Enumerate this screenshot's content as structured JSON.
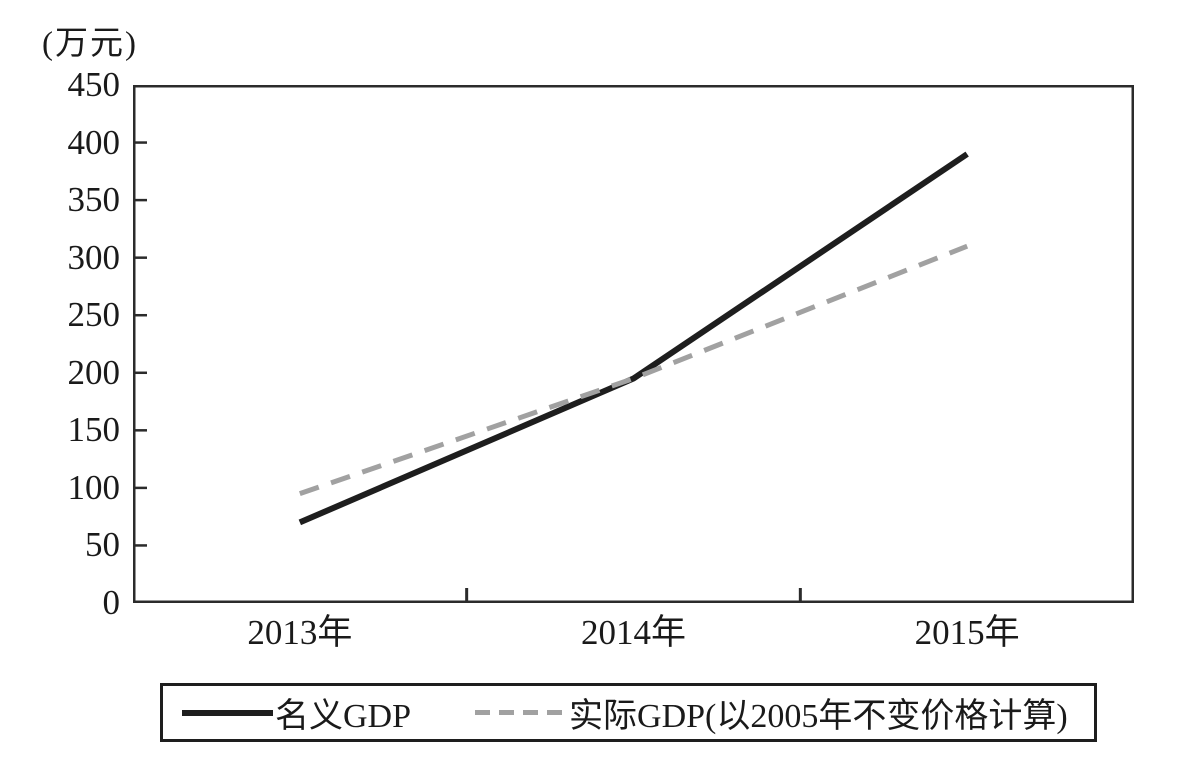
{
  "unit_label": "(万元)",
  "colors": {
    "nominal_line": "#1e1e1e",
    "real_line": "#a1a1a1",
    "axis": "#2b2b2b",
    "background": "#ffffff"
  },
  "chart_data": {
    "type": "line",
    "categories": [
      "2013年",
      "2014年",
      "2015年"
    ],
    "series": [
      {
        "name": "名义GDP",
        "style": "solid",
        "color": "#1e1e1e",
        "values": [
          70,
          195,
          390
        ]
      },
      {
        "name": "实际GDP(以2005年不变价格计算)",
        "style": "dashed",
        "color": "#a1a1a1",
        "values": [
          95,
          195,
          310
        ]
      }
    ],
    "title": "",
    "xlabel": "",
    "ylabel": "(万元)",
    "ylim": [
      0,
      450
    ],
    "yticks": [
      0,
      50,
      100,
      150,
      200,
      250,
      300,
      350,
      400,
      450
    ],
    "grid": false,
    "plot_border": true,
    "legend_position": "bottom-boxed"
  },
  "legend": {
    "items": [
      {
        "label": "名义GDP",
        "swatch": "solid-line"
      },
      {
        "label": "实际GDP(以2005年不变价格计算)",
        "swatch": "dashed-line"
      }
    ]
  }
}
